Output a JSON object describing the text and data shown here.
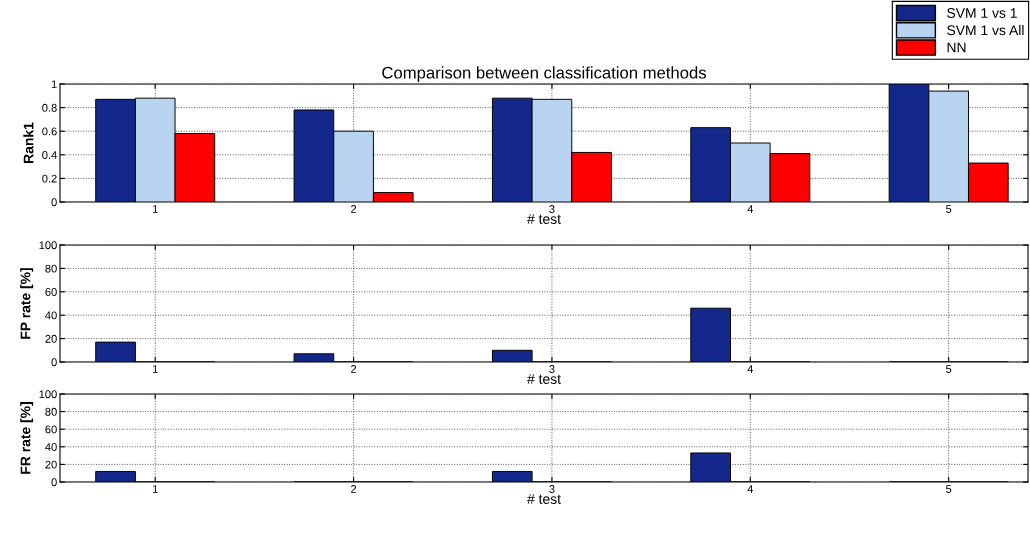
{
  "chart_data": [
    {
      "type": "bar",
      "title": "Comparison between classification methods",
      "xlabel": "# test",
      "ylabel": "Rank1",
      "categories": [
        "1",
        "2",
        "3",
        "4",
        "5"
      ],
      "series": [
        {
          "name": "SVM 1 vs 1",
          "color": "#14288c",
          "values": [
            0.87,
            0.78,
            0.88,
            0.63,
            1.0
          ]
        },
        {
          "name": "SVM 1 vs All",
          "color": "#b8d4f0",
          "values": [
            0.88,
            0.6,
            0.87,
            0.5,
            0.94
          ]
        },
        {
          "name": "NN",
          "color": "#ff0000",
          "values": [
            0.58,
            0.08,
            0.42,
            0.41,
            0.33
          ]
        }
      ],
      "ylim": [
        0,
        1
      ],
      "yticks": [
        0,
        0.2,
        0.4,
        0.6,
        0.8,
        1
      ],
      "grid": true,
      "legend": "top right"
    },
    {
      "type": "bar",
      "xlabel": "# test",
      "ylabel": "FP rate [%]",
      "categories": [
        "1",
        "2",
        "3",
        "4",
        "5"
      ],
      "series": [
        {
          "color": "#14288c",
          "values": [
            17,
            7,
            10,
            46,
            0
          ]
        },
        {
          "color": "#b8d4f0",
          "values": [
            0,
            0,
            0,
            0,
            0
          ]
        },
        {
          "color": "#ff0000",
          "values": [
            0,
            0,
            0,
            0,
            0
          ]
        }
      ],
      "ylim": [
        0,
        100
      ],
      "yticks": [
        0,
        20,
        40,
        60,
        80,
        100
      ],
      "grid": true
    },
    {
      "type": "bar",
      "xlabel": "# test",
      "ylabel": "FR rate [%]",
      "categories": [
        "1",
        "2",
        "3",
        "4",
        "5"
      ],
      "series": [
        {
          "color": "#14288c",
          "values": [
            12,
            0,
            12,
            33,
            0
          ]
        },
        {
          "color": "#b8d4f0",
          "values": [
            0,
            0,
            0,
            0,
            0
          ]
        },
        {
          "color": "#ff0000",
          "values": [
            0,
            0,
            0,
            0,
            0
          ]
        }
      ],
      "ylim": [
        0,
        100
      ],
      "yticks": [
        0,
        20,
        40,
        60,
        80,
        100
      ],
      "grid": true
    }
  ]
}
